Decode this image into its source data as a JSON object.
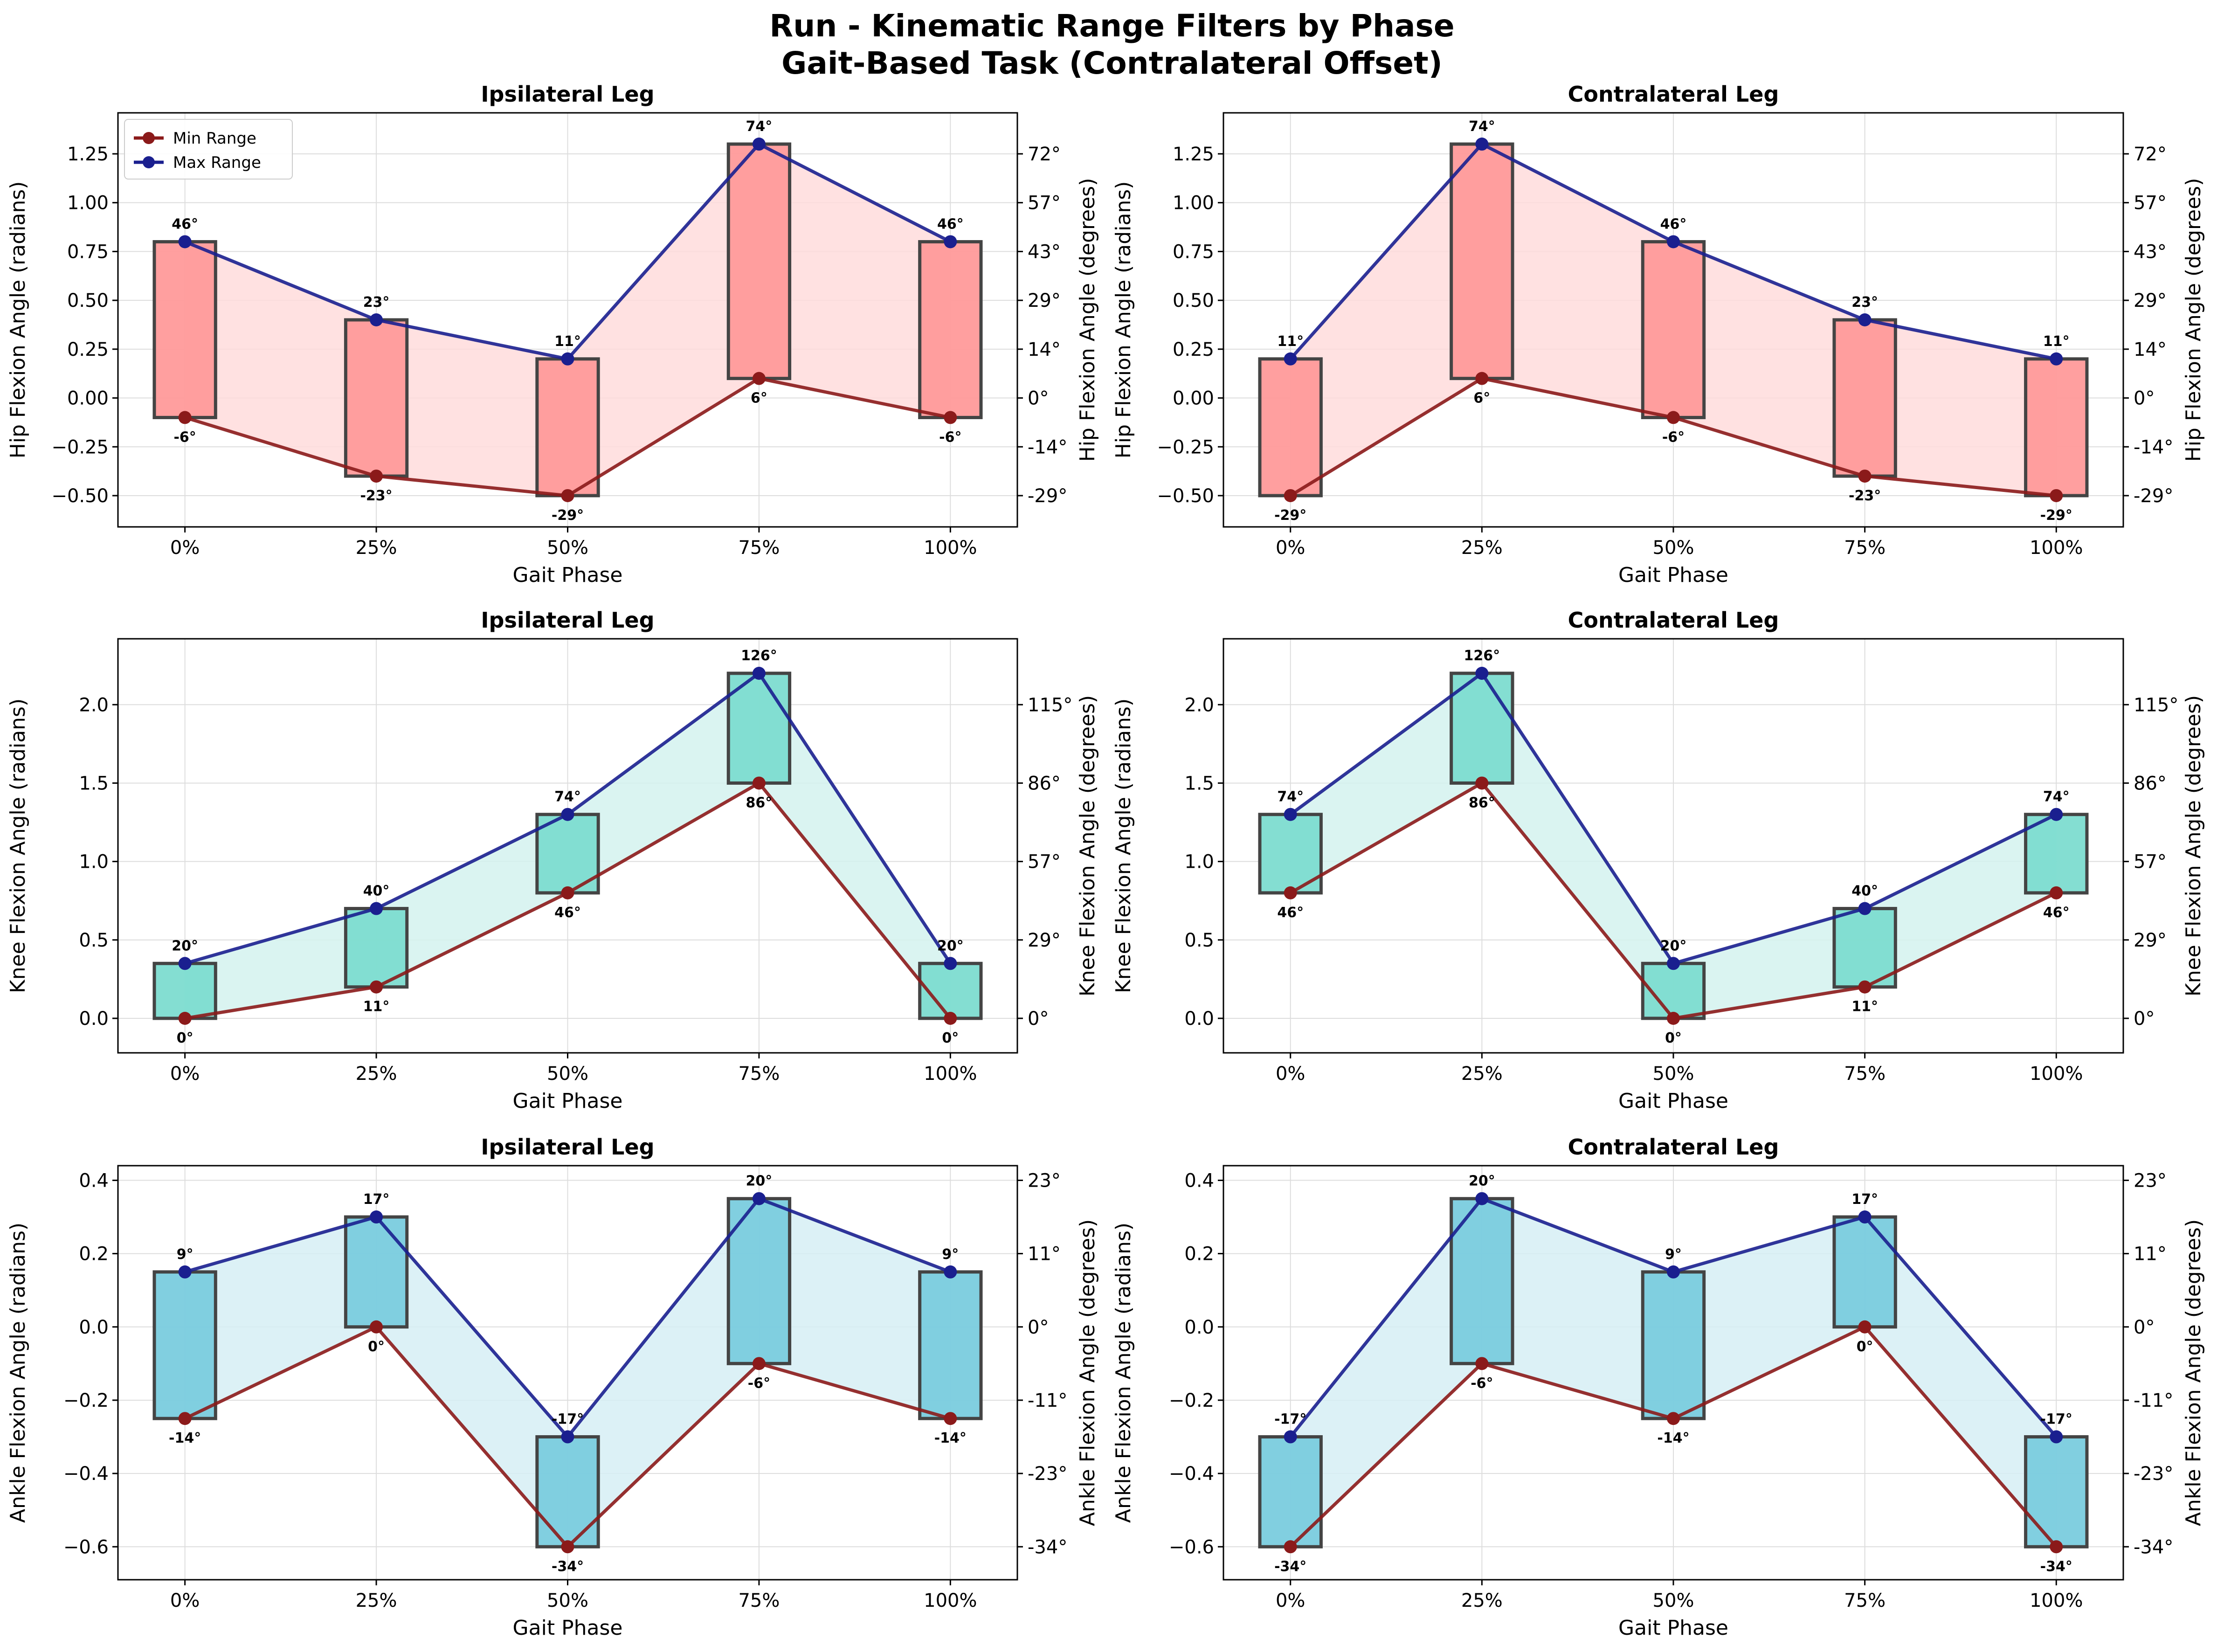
{
  "title": "Run - Kinematic Range Filters by Phase",
  "subtitle": "Gait-Based Task (Contralateral Offset)",
  "legend": {
    "min_label": "Min Range",
    "max_label": "Max Range"
  },
  "colors": {
    "min_line": "#8b1a1a",
    "max_line": "#1a1f8f",
    "hip_box": "#ff9a9a",
    "hip_fill": "#ffdcdc",
    "knee_box": "#7ddcd0",
    "knee_fill": "#d4f2ee",
    "ankle_box": "#7accde",
    "ankle_fill": "#d6eff4",
    "box_edge": "#444444",
    "grid": "#dddddd"
  },
  "chart_data": [
    {
      "type": "line",
      "title": "Ipsilateral Leg",
      "joint": "hip",
      "xlabel": "Gait Phase",
      "ylabel": "Hip Flexion Angle (radians)",
      "ylabel_right": "Hip Flexion Angle (degrees)",
      "categories": [
        "0%",
        "25%",
        "50%",
        "75%",
        "100%"
      ],
      "ylim": [
        -0.66,
        1.46
      ],
      "yticks": [
        -0.5,
        -0.25,
        0.0,
        0.25,
        0.5,
        0.75,
        1.0,
        1.25
      ],
      "ytick_labels": [
        "−0.50",
        "−0.25",
        "0.00",
        "0.25",
        "0.50",
        "0.75",
        "1.00",
        "1.25"
      ],
      "right_ticks": [
        "-29°",
        "-14°",
        "0°",
        "14°",
        "29°",
        "43°",
        "57°",
        "72°"
      ],
      "legend": "top-left",
      "grid": true,
      "series": [
        {
          "name": "Min Range",
          "values": [
            -0.1,
            -0.4,
            -0.5,
            0.1,
            -0.1
          ],
          "labels": [
            "-6°",
            "-23°",
            "-29°",
            "6°",
            "-6°"
          ]
        },
        {
          "name": "Max Range",
          "values": [
            0.8,
            0.4,
            0.2,
            1.3,
            0.8
          ],
          "labels": [
            "46°",
            "23°",
            "11°",
            "74°",
            "46°"
          ]
        }
      ]
    },
    {
      "type": "line",
      "title": "Contralateral Leg",
      "joint": "hip",
      "xlabel": "Gait Phase",
      "ylabel": "Hip Flexion Angle (radians)",
      "ylabel_right": "Hip Flexion Angle (degrees)",
      "categories": [
        "0%",
        "25%",
        "50%",
        "75%",
        "100%"
      ],
      "ylim": [
        -0.66,
        1.46
      ],
      "yticks": [
        -0.5,
        -0.25,
        0.0,
        0.25,
        0.5,
        0.75,
        1.0,
        1.25
      ],
      "ytick_labels": [
        "−0.50",
        "−0.25",
        "0.00",
        "0.25",
        "0.50",
        "0.75",
        "1.00",
        "1.25"
      ],
      "right_ticks": [
        "-29°",
        "-14°",
        "0°",
        "14°",
        "29°",
        "43°",
        "57°",
        "72°"
      ],
      "legend": "",
      "grid": true,
      "series": [
        {
          "name": "Min Range",
          "values": [
            -0.5,
            0.1,
            -0.1,
            -0.4,
            -0.5
          ],
          "labels": [
            "-29°",
            "6°",
            "-6°",
            "-23°",
            "-29°"
          ]
        },
        {
          "name": "Max Range",
          "values": [
            0.2,
            1.3,
            0.8,
            0.4,
            0.2
          ],
          "labels": [
            "11°",
            "74°",
            "46°",
            "23°",
            "11°"
          ]
        }
      ]
    },
    {
      "type": "line",
      "title": "Ipsilateral Leg",
      "joint": "knee",
      "xlabel": "Gait Phase",
      "ylabel": "Knee Flexion Angle (radians)",
      "ylabel_right": "Knee Flexion Angle (degrees)",
      "categories": [
        "0%",
        "25%",
        "50%",
        "75%",
        "100%"
      ],
      "ylim": [
        -0.22,
        2.42
      ],
      "yticks": [
        0.0,
        0.5,
        1.0,
        1.5,
        2.0
      ],
      "ytick_labels": [
        "0.0",
        "0.5",
        "1.0",
        "1.5",
        "2.0"
      ],
      "right_ticks": [
        "0°",
        "29°",
        "57°",
        "86°",
        "115°"
      ],
      "legend": "",
      "grid": true,
      "series": [
        {
          "name": "Min Range",
          "values": [
            0.0,
            0.2,
            0.8,
            1.5,
            0.0
          ],
          "labels": [
            "0°",
            "11°",
            "46°",
            "86°",
            "0°"
          ]
        },
        {
          "name": "Max Range",
          "values": [
            0.35,
            0.7,
            1.3,
            2.2,
            0.35
          ],
          "labels": [
            "20°",
            "40°",
            "74°",
            "126°",
            "20°"
          ]
        }
      ]
    },
    {
      "type": "line",
      "title": "Contralateral Leg",
      "joint": "knee",
      "xlabel": "Gait Phase",
      "ylabel": "Knee Flexion Angle (radians)",
      "ylabel_right": "Knee Flexion Angle (degrees)",
      "categories": [
        "0%",
        "25%",
        "50%",
        "75%",
        "100%"
      ],
      "ylim": [
        -0.22,
        2.42
      ],
      "yticks": [
        0.0,
        0.5,
        1.0,
        1.5,
        2.0
      ],
      "ytick_labels": [
        "0.0",
        "0.5",
        "1.0",
        "1.5",
        "2.0"
      ],
      "right_ticks": [
        "0°",
        "29°",
        "57°",
        "86°",
        "115°"
      ],
      "legend": "",
      "grid": true,
      "series": [
        {
          "name": "Min Range",
          "values": [
            0.8,
            1.5,
            0.0,
            0.2,
            0.8
          ],
          "labels": [
            "46°",
            "86°",
            "0°",
            "11°",
            "46°"
          ]
        },
        {
          "name": "Max Range",
          "values": [
            1.3,
            2.2,
            0.35,
            0.7,
            1.3
          ],
          "labels": [
            "74°",
            "126°",
            "20°",
            "40°",
            "74°"
          ]
        }
      ]
    },
    {
      "type": "line",
      "title": "Ipsilateral Leg",
      "joint": "ankle",
      "xlabel": "Gait Phase",
      "ylabel": "Ankle Flexion Angle (radians)",
      "ylabel_right": "Ankle Flexion Angle (degrees)",
      "categories": [
        "0%",
        "25%",
        "50%",
        "75%",
        "100%"
      ],
      "ylim": [
        -0.69,
        0.44
      ],
      "yticks": [
        -0.6,
        -0.4,
        -0.2,
        0.0,
        0.2,
        0.4
      ],
      "ytick_labels": [
        "−0.6",
        "−0.4",
        "−0.2",
        "0.0",
        "0.2",
        "0.4"
      ],
      "right_ticks": [
        "-34°",
        "-23°",
        "-11°",
        "0°",
        "11°",
        "23°"
      ],
      "legend": "",
      "grid": true,
      "series": [
        {
          "name": "Min Range",
          "values": [
            -0.25,
            0.0,
            -0.6,
            -0.1,
            -0.25
          ],
          "labels": [
            "-14°",
            "0°",
            "-34°",
            "-6°",
            "-14°"
          ]
        },
        {
          "name": "Max Range",
          "values": [
            0.15,
            0.3,
            -0.3,
            0.35,
            0.15
          ],
          "labels": [
            "9°",
            "17°",
            "-17°",
            "20°",
            "9°"
          ]
        }
      ]
    },
    {
      "type": "line",
      "title": "Contralateral Leg",
      "joint": "ankle",
      "xlabel": "Gait Phase",
      "ylabel": "Ankle Flexion Angle (radians)",
      "ylabel_right": "Ankle Flexion Angle (degrees)",
      "categories": [
        "0%",
        "25%",
        "50%",
        "75%",
        "100%"
      ],
      "ylim": [
        -0.69,
        0.44
      ],
      "yticks": [
        -0.6,
        -0.4,
        -0.2,
        0.0,
        0.2,
        0.4
      ],
      "ytick_labels": [
        "−0.6",
        "−0.4",
        "−0.2",
        "0.0",
        "0.2",
        "0.4"
      ],
      "right_ticks": [
        "-34°",
        "-23°",
        "-11°",
        "0°",
        "11°",
        "23°"
      ],
      "legend": "",
      "grid": true,
      "series": [
        {
          "name": "Min Range",
          "values": [
            -0.6,
            -0.1,
            -0.25,
            0.0,
            -0.6
          ],
          "labels": [
            "-34°",
            "-6°",
            "-14°",
            "0°",
            "-34°"
          ]
        },
        {
          "name": "Max Range",
          "values": [
            -0.3,
            0.35,
            0.15,
            0.3,
            -0.3
          ],
          "labels": [
            "-17°",
            "20°",
            "9°",
            "17°",
            "-17°"
          ]
        }
      ]
    }
  ]
}
